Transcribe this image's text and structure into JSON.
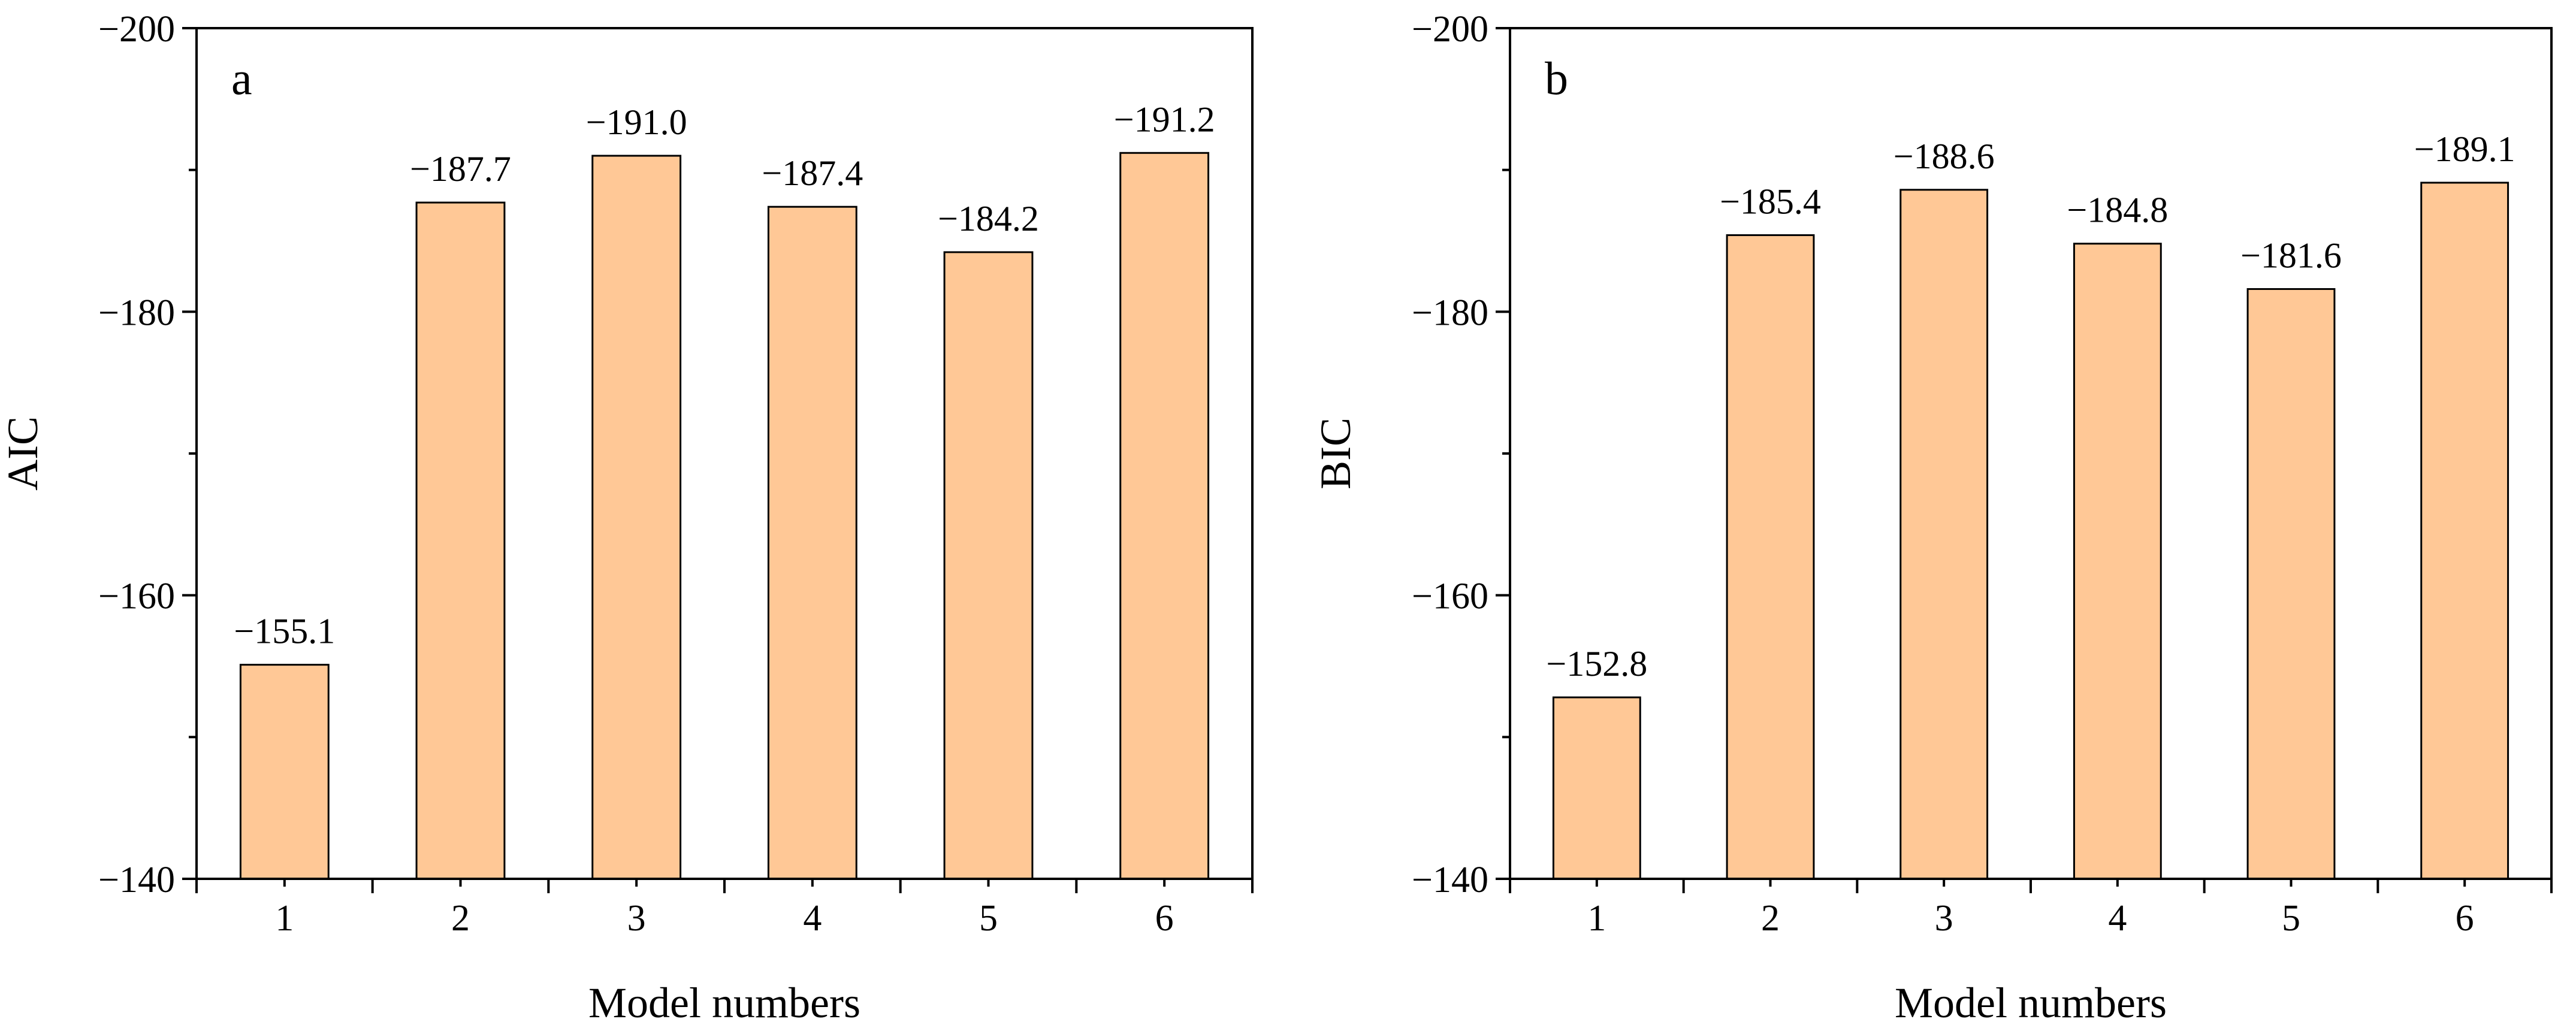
{
  "chart_data": [
    {
      "type": "bar",
      "panel_label": "a",
      "categories": [
        "1",
        "2",
        "3",
        "4",
        "5",
        "6"
      ],
      "values": [
        -155.1,
        -187.7,
        -191.0,
        -187.4,
        -184.2,
        -191.2
      ],
      "data_labels": [
        "−155.1",
        "−187.7",
        "−191.0",
        "−187.4",
        "−184.2",
        "−191.2"
      ],
      "title": "",
      "xlabel": "Model numbers",
      "ylabel": "AIC",
      "ylim": [
        -140,
        -200
      ],
      "y_axis_inverted": true,
      "yticks": [
        -200,
        -180,
        -160,
        -140
      ],
      "ytick_labels": [
        "−200",
        "−180",
        "−160",
        "−140"
      ],
      "grid": false,
      "bar_color": "#FFC896",
      "bar_edge_color": "#000000"
    },
    {
      "type": "bar",
      "panel_label": "b",
      "categories": [
        "1",
        "2",
        "3",
        "4",
        "5",
        "6"
      ],
      "values": [
        -152.8,
        -185.4,
        -188.6,
        -184.8,
        -181.6,
        -189.1
      ],
      "data_labels": [
        "−152.8",
        "−185.4",
        "−188.6",
        "−184.8",
        "−181.6",
        "−189.1"
      ],
      "title": "",
      "xlabel": "Model numbers",
      "ylabel": "BIC",
      "ylim": [
        -140,
        -200
      ],
      "y_axis_inverted": true,
      "yticks": [
        -200,
        -180,
        -160,
        -140
      ],
      "ytick_labels": [
        "−200",
        "−180",
        "−160",
        "−140"
      ],
      "grid": false,
      "bar_color": "#FFC896",
      "bar_edge_color": "#000000"
    }
  ]
}
